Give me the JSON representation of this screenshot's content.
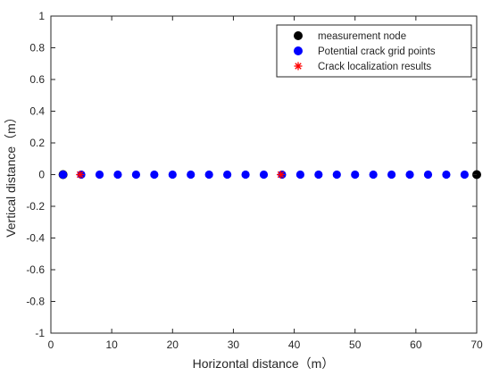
{
  "chart_data": {
    "type": "scatter",
    "title": "",
    "xlabel": "Horizontal distance（m）",
    "ylabel": "Vertical distance（m）",
    "xlim": [
      0,
      70
    ],
    "ylim": [
      -1,
      1
    ],
    "xticks": [
      0,
      10,
      20,
      30,
      40,
      50,
      60,
      70
    ],
    "xtick_labels": [
      "0",
      "10",
      "20",
      "30",
      "40",
      "50",
      "60",
      "70"
    ],
    "yticks": [
      -1,
      -0.8,
      -0.6,
      -0.4,
      -0.2,
      0,
      0.2,
      0.4,
      0.6,
      0.8,
      1
    ],
    "ytick_labels": [
      "-1",
      "-0.8",
      "-0.6",
      "-0.4",
      "-0.2",
      "0",
      "0.2",
      "0.4",
      "0.6",
      "0.8",
      "1"
    ],
    "grid": false,
    "legend_position": "top-right",
    "series": [
      {
        "name": "measurement node",
        "marker": "dot",
        "color": "#000000",
        "x": [
          2,
          70
        ],
        "y": [
          0,
          0
        ]
      },
      {
        "name": "Potential crack grid points",
        "marker": "dot",
        "color": "#0000ff",
        "x": [
          2,
          5,
          8,
          11,
          14,
          17,
          20,
          23,
          26,
          29,
          32,
          35,
          38,
          41,
          44,
          47,
          50,
          53,
          56,
          59,
          62,
          65,
          68
        ],
        "y": [
          0,
          0,
          0,
          0,
          0,
          0,
          0,
          0,
          0,
          0,
          0,
          0,
          0,
          0,
          0,
          0,
          0,
          0,
          0,
          0,
          0,
          0,
          0
        ]
      },
      {
        "name": "Crack localization results",
        "marker": "asterisk",
        "color": "#ff0000",
        "x": [
          4.8,
          37.8
        ],
        "y": [
          0,
          0
        ]
      }
    ]
  }
}
